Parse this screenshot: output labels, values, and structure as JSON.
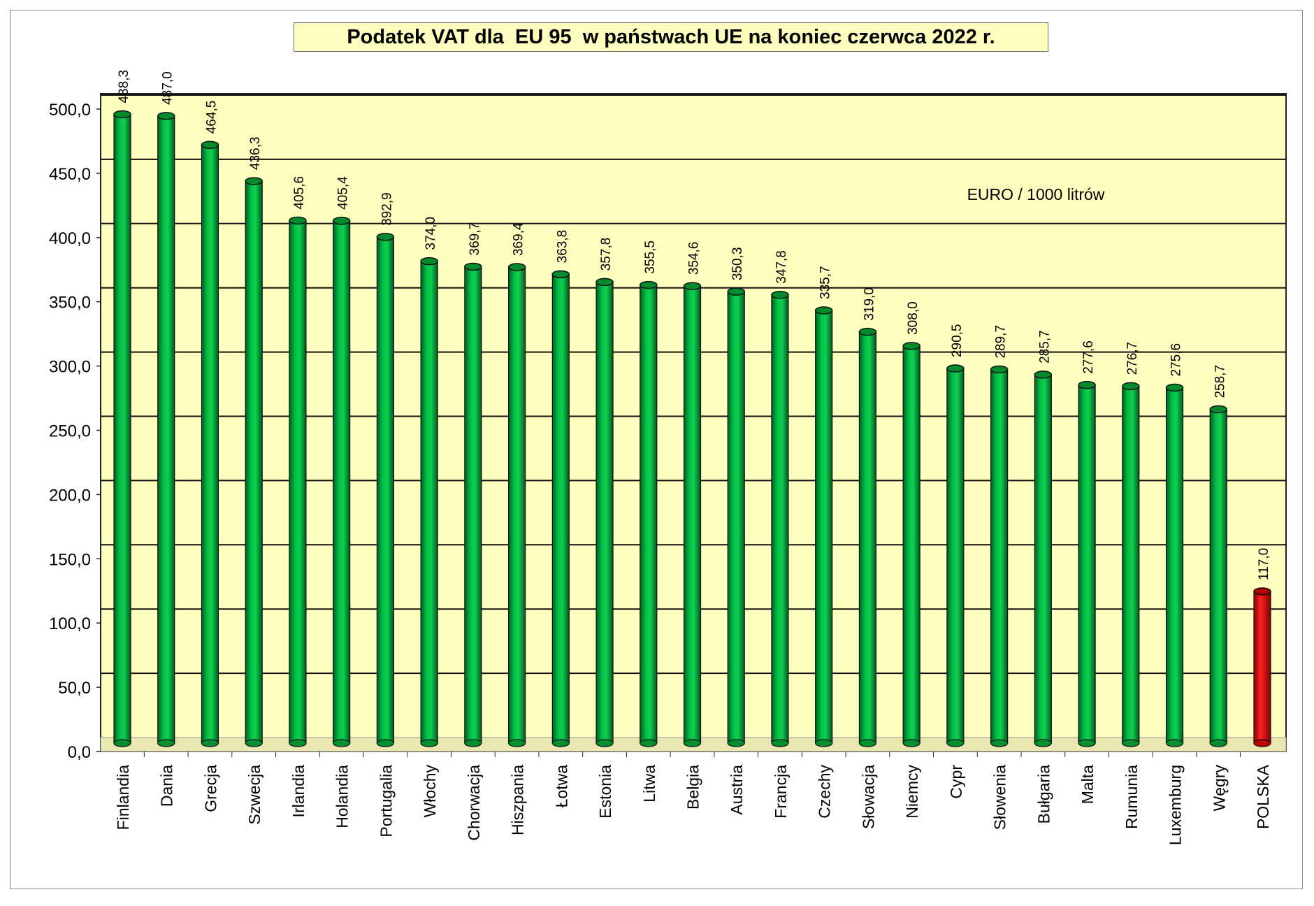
{
  "chart_data": {
    "type": "bar",
    "title": "Podatek VAT dla  EU 95  w państwach UE na koniec czerwca 2022 r.",
    "annotation": "EURO / 1000 litrów",
    "categories": [
      "Finlandia",
      "Dania",
      "Grecja",
      "Szwecja",
      "Irlandia",
      "Holandia",
      "Portugalia",
      "Włochy",
      "Chorwacja",
      "Hiszpania",
      "Łotwa",
      "Estonia",
      "Litwa",
      "Belgia",
      "Austria",
      "Francja",
      "Czechy",
      "Słowacja",
      "Niemcy",
      "Cypr",
      "Słowenia",
      "Bułgaria",
      "Malta",
      "Rumunia",
      "Luxemburg",
      "Węgry",
      "POLSKA"
    ],
    "values": [
      488.3,
      487.0,
      464.5,
      436.3,
      405.6,
      405.4,
      392.9,
      374.0,
      369.7,
      369.4,
      363.8,
      357.8,
      355.5,
      354.6,
      350.3,
      347.8,
      335.7,
      319.0,
      308.0,
      290.5,
      289.7,
      285.7,
      277.6,
      276.7,
      275.6,
      258.7,
      117.0
    ],
    "data_labels": [
      "488,3",
      "487,0",
      "464,5",
      "436,3",
      "405,6",
      "405,4",
      "392,9",
      "374,0",
      "369,7",
      "369,4",
      "363,8",
      "357,8",
      "355,5",
      "354,6",
      "350,3",
      "347,8",
      "335,7",
      "319,0",
      "308,0",
      "290,5",
      "289,7",
      "285,7",
      "277,6",
      "276,7",
      "275,6",
      "258,7",
      "117,0"
    ],
    "yticks": [
      "0,0",
      "50,0",
      "100,0",
      "150,0",
      "200,0",
      "250,0",
      "300,0",
      "350,0",
      "400,0",
      "450,0",
      "500,0"
    ],
    "ylim": [
      0,
      500
    ],
    "grid": true,
    "legend": "none",
    "colors": {
      "bar": "#00b040",
      "highlight": "#ff0000",
      "plot_background": "#ffffc0"
    },
    "highlight_category": "POLSKA"
  }
}
